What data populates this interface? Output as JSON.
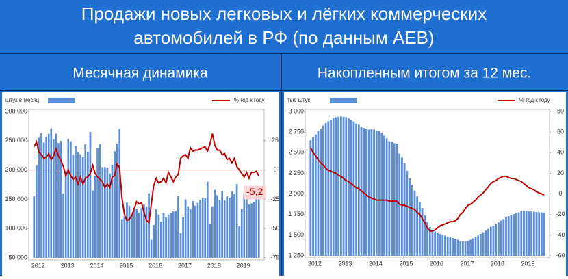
{
  "title": [
    "Продажи новых легковых и лёгких коммерческих",
    "автомобилей в РФ (по данным АЕВ)"
  ],
  "chart_data": [
    {
      "type": "bar_line",
      "title": "Месячная динамика",
      "y_label": "штук в месяц",
      "legend": "top",
      "y2_zero_line": true,
      "categories": [
        "2012",
        null,
        null,
        null,
        null,
        null,
        null,
        null,
        null,
        null,
        null,
        null,
        "2013",
        null,
        null,
        null,
        null,
        null,
        null,
        null,
        null,
        null,
        null,
        null,
        "2014",
        null,
        null,
        null,
        null,
        null,
        null,
        null,
        null,
        null,
        null,
        null,
        "2015",
        null,
        null,
        null,
        null,
        null,
        null,
        null,
        null,
        null,
        null,
        null,
        "2016",
        null,
        null,
        null,
        null,
        null,
        null,
        null,
        null,
        null,
        null,
        null,
        "2017",
        null,
        null,
        null,
        null,
        null,
        null,
        null,
        null,
        null,
        null,
        null,
        "2018",
        null,
        null,
        null,
        null,
        null,
        null,
        null,
        null,
        null,
        null,
        null,
        "2019",
        null,
        null,
        null,
        null,
        null,
        null,
        null,
        null
      ],
      "series": [
        {
          "type": "bar",
          "color": "#5b8ed6",
          "values": [
            155000,
            208000,
            255000,
            263000,
            247000,
            257000,
            262000,
            271000,
            252000,
            262000,
            246000,
            250000,
            160000,
            198000,
            253000,
            249000,
            226000,
            241000,
            231000,
            227000,
            222000,
            244000,
            231000,
            265000,
            165000,
            190000,
            238000,
            244000,
            205000,
            205000,
            204000,
            194000,
            209000,
            232000,
            245000,
            270000,
            116000,
            121000,
            144000,
            139000,
            124000,
            136000,
            134000,
            127000,
            135000,
            141000,
            138000,
            160000,
            81000,
            106000,
            133000,
            124000,
            112000,
            126000,
            119000,
            124000,
            127000,
            129000,
            130000,
            155000,
            92000,
            119000,
            150000,
            138000,
            133000,
            147000,
            139000,
            144000,
            149000,
            153000,
            152000,
            180000,
            108000,
            138000,
            166000,
            157000,
            149000,
            164000,
            148000,
            155000,
            153000,
            163000,
            159000,
            176000,
            104000,
            133000,
            160000,
            154000,
            141000,
            143000,
            145000,
            152000,
            150000
          ]
        },
        {
          "type": "line",
          "name": "% год к году",
          "color": "#c00000",
          "axis": "y2",
          "values": [
            20,
            24,
            15,
            13,
            10,
            11,
            14,
            9,
            12,
            18,
            12,
            8,
            3,
            -5,
            0,
            -5,
            -8,
            -6,
            -12,
            -6,
            -12,
            -7,
            -6,
            -3,
            4,
            -3,
            -6,
            -8,
            -10,
            -15,
            -12,
            -15,
            -6,
            -5,
            5,
            2,
            -24,
            -38,
            -43,
            -42,
            -39,
            -33,
            -27,
            -29,
            -28,
            -36,
            -43,
            -45,
            -29,
            -13,
            -7,
            -11,
            -10,
            -7,
            -11,
            -2,
            -6,
            -10,
            -6,
            -4,
            10,
            12,
            13,
            10,
            19,
            16,
            17,
            17,
            18,
            19,
            20,
            16,
            22,
            31,
            21,
            17,
            17,
            13,
            14,
            9,
            10,
            6,
            10,
            3,
            0,
            -3,
            -6,
            -2,
            -7,
            -2,
            -2,
            -1,
            -5.2
          ],
          "value_labels": [
            null,
            null,
            null,
            null,
            null,
            null,
            null,
            null,
            null,
            null,
            null,
            null,
            null,
            null,
            null,
            null,
            null,
            null,
            null,
            null,
            null,
            null,
            null,
            null,
            null,
            null,
            null,
            null,
            null,
            null,
            null,
            null,
            null,
            null,
            null,
            null,
            null,
            null,
            null,
            null,
            null,
            null,
            null,
            null,
            null,
            null,
            null,
            null,
            null,
            null,
            null,
            null,
            null,
            null,
            null,
            null,
            null,
            null,
            null,
            null,
            null,
            null,
            null,
            null,
            null,
            null,
            null,
            null,
            null,
            null,
            null,
            null,
            null,
            null,
            null,
            null,
            null,
            null,
            null,
            null,
            null,
            null,
            null,
            null,
            null,
            null,
            null,
            null,
            null,
            null,
            null,
            null,
            "-5,2"
          ]
        }
      ],
      "ylim": [
        50000,
        300000
      ],
      "yticks": [
        {
          "value": 50000,
          "label": "50 000"
        },
        {
          "value": 100000,
          "label": "100 000"
        },
        {
          "value": 150000,
          "label": "150 000"
        },
        {
          "value": 200000,
          "label": "200 000"
        },
        {
          "value": 250000,
          "label": "250 000"
        },
        {
          "value": 300000,
          "label": "300 000"
        }
      ],
      "y2lim": [
        -75,
        50
      ],
      "y2ticks": [
        -75,
        -50,
        -25,
        0,
        25
      ]
    },
    {
      "type": "bar_line",
      "title": "Накопленным итогом за 12 мес.",
      "y_label": "тыс штук",
      "legend": "top",
      "y2_zero_line": false,
      "categories": [
        "2012",
        null,
        null,
        null,
        null,
        null,
        null,
        null,
        null,
        null,
        null,
        null,
        "2013",
        null,
        null,
        null,
        null,
        null,
        null,
        null,
        null,
        null,
        null,
        null,
        "2014",
        null,
        null,
        null,
        null,
        null,
        null,
        null,
        null,
        null,
        null,
        null,
        "2015",
        null,
        null,
        null,
        null,
        null,
        null,
        null,
        null,
        null,
        null,
        null,
        "2016",
        null,
        null,
        null,
        null,
        null,
        null,
        null,
        null,
        null,
        null,
        null,
        "2017",
        null,
        null,
        null,
        null,
        null,
        null,
        null,
        null,
        null,
        null,
        null,
        "2018",
        null,
        null,
        null,
        null,
        null,
        null,
        null,
        null,
        null,
        null,
        null,
        "2019",
        null,
        null,
        null,
        null,
        null,
        null,
        null,
        null
      ],
      "series": [
        {
          "type": "bar",
          "color": "#5b8ed6",
          "values": [
            2650,
            2690,
            2720,
            2760,
            2790,
            2830,
            2860,
            2880,
            2900,
            2920,
            2930,
            2935,
            2940,
            2935,
            2930,
            2915,
            2895,
            2880,
            2855,
            2840,
            2810,
            2800,
            2790,
            2780,
            2785,
            2780,
            2765,
            2760,
            2740,
            2705,
            2675,
            2640,
            2630,
            2615,
            2610,
            2490,
            2440,
            2370,
            2280,
            2190,
            2110,
            2040,
            1970,
            1900,
            1830,
            1740,
            1660,
            1600,
            1565,
            1545,
            1530,
            1515,
            1505,
            1495,
            1480,
            1475,
            1465,
            1455,
            1445,
            1425,
            1425,
            1428,
            1435,
            1445,
            1460,
            1478,
            1495,
            1515,
            1535,
            1555,
            1575,
            1600,
            1615,
            1635,
            1655,
            1675,
            1695,
            1715,
            1730,
            1745,
            1755,
            1765,
            1775,
            1795,
            1795,
            1795,
            1790,
            1790,
            1785,
            1780,
            1778,
            1776,
            1770
          ]
        },
        {
          "type": "line",
          "name": "% год к году",
          "color": "#c00000",
          "axis": "y2",
          "values": [
            45,
            40,
            37,
            33,
            30,
            28,
            25,
            23,
            22,
            21,
            20,
            18,
            17,
            15,
            13,
            12,
            10,
            8,
            6,
            5,
            3,
            1,
            -1,
            -3,
            -4,
            -5,
            -6,
            -6,
            -6,
            -6,
            -6,
            -7,
            -7,
            -7,
            -7,
            -10,
            -11,
            -11,
            -12,
            -13,
            -14,
            -15,
            -18,
            -20,
            -24,
            -28,
            -33,
            -36,
            -36,
            -35,
            -33,
            -31,
            -30,
            -29,
            -28,
            -27,
            -27,
            -26,
            -24,
            -20,
            -18,
            -14,
            -11,
            -10,
            -8,
            -6,
            -3,
            -1,
            1,
            4,
            7,
            10,
            12,
            13,
            15,
            16,
            17,
            17,
            16,
            15,
            15,
            14,
            13,
            12,
            10,
            8,
            6,
            5,
            4,
            2,
            1,
            0,
            -1
          ]
        }
      ],
      "ylim": [
        1250,
        3000
      ],
      "yticks": [
        {
          "value": 1250,
          "label": "1 250"
        },
        {
          "value": 1500,
          "label": "1 500"
        },
        {
          "value": 1750,
          "label": "1 750"
        },
        {
          "value": 2000,
          "label": "2 000"
        },
        {
          "value": 2250,
          "label": "2 250"
        },
        {
          "value": 2500,
          "label": "2 500"
        },
        {
          "value": 2750,
          "label": "2 750"
        },
        {
          "value": 3000,
          "label": "3 000"
        }
      ],
      "y2lim": [
        -60,
        80
      ],
      "y2ticks": [
        -60,
        -40,
        -20,
        0,
        20,
        40,
        60,
        80
      ]
    }
  ]
}
